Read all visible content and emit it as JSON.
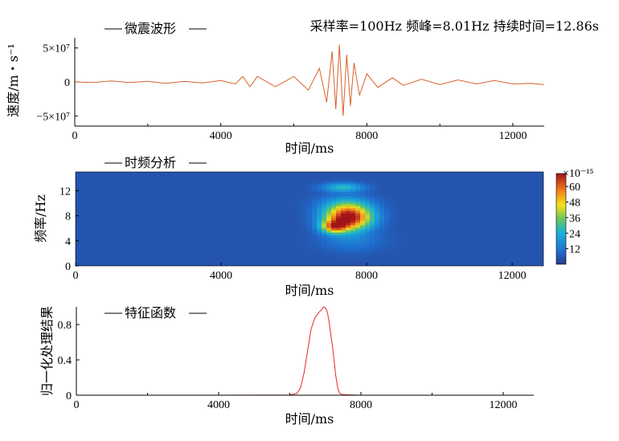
{
  "chart_data": [
    {
      "type": "line",
      "title": "微震波形",
      "annotation": "采样率=100Hz 频峰=8.01Hz 持续时间=12.86s",
      "xlabel": "时间/ms",
      "ylabel": "速度/m・s⁻¹",
      "xlim": [
        0,
        12860
      ],
      "ylim": [
        -65000000,
        65000000
      ],
      "x_ticks": [
        0,
        4000,
        8000,
        12000
      ],
      "x_tick_labels": [
        "0",
        "4000",
        "8000",
        "12000"
      ],
      "y_ticks": [
        50000000,
        0,
        -50000000
      ],
      "y_tick_labels": [
        "5×10⁷",
        "0",
        "−5×10⁷"
      ],
      "color": "#d9612b",
      "series": [
        {
          "x": [
            0,
            500,
            1000,
            1500,
            2000,
            2500,
            3000,
            3500,
            4000,
            4400,
            4600,
            4800,
            5000,
            5500,
            6000,
            6400,
            6700,
            6900,
            7050,
            7150,
            7250,
            7350,
            7450,
            7550,
            7650,
            7800,
            8000,
            8300,
            8700,
            9000,
            9500,
            10000,
            10500,
            11000,
            11500,
            12000,
            12500,
            12860
          ],
          "y": [
            0,
            -1000000,
            1500000,
            -1000000,
            1000000,
            -2000000,
            1000000,
            -1500000,
            2000000,
            -3000000,
            8000000,
            -7000000,
            8000000,
            -7000000,
            8000000,
            -12000000,
            20000000,
            -30000000,
            45000000,
            -40000000,
            55000000,
            -50000000,
            40000000,
            -35000000,
            28000000,
            -20000000,
            12000000,
            -8000000,
            6000000,
            -5000000,
            4000000,
            -4000000,
            3000000,
            -3000000,
            2000000,
            -3000000,
            -2000000,
            -4000000
          ]
        }
      ]
    },
    {
      "type": "heatmap",
      "title": "时频分析",
      "xlabel": "时间/ms",
      "ylabel": "频率/Hz",
      "xlim": [
        0,
        12860
      ],
      "ylim": [
        0,
        15
      ],
      "x_ticks": [
        0,
        4000,
        8000,
        12000
      ],
      "x_tick_labels": [
        "0",
        "4000",
        "8000",
        "12000"
      ],
      "y_ticks": [
        0,
        4,
        8,
        12
      ],
      "y_tick_labels": [
        "0",
        "4",
        "8",
        "12"
      ],
      "colorbar_exponent": "×10⁻¹⁵",
      "colorbar_range": [
        0,
        70
      ],
      "colorbar_ticks": [
        12,
        24,
        36,
        48,
        60
      ],
      "colorbar_tick_labels": [
        "12",
        "24",
        "36",
        "48",
        "60"
      ],
      "blobs": [
        {
          "t": 7500,
          "f": 7.8,
          "sigma_t": 450,
          "sigma_f": 1.4,
          "peak": 70
        },
        {
          "t": 7100,
          "f": 6.3,
          "sigma_t": 250,
          "sigma_f": 0.7,
          "peak": 40
        },
        {
          "t": 7350,
          "f": 12.6,
          "sigma_t": 400,
          "sigma_f": 0.5,
          "peak": 22
        },
        {
          "t": 7400,
          "f": 10.0,
          "sigma_t": 550,
          "sigma_f": 1.0,
          "peak": 10
        },
        {
          "t": 7600,
          "f": 4.0,
          "sigma_t": 600,
          "sigma_f": 1.2,
          "peak": 8
        }
      ]
    },
    {
      "type": "line",
      "title": "特征函数",
      "xlabel": "时间/ms",
      "ylabel": "归一化处理结果",
      "xlim": [
        0,
        12860
      ],
      "ylim": [
        0,
        1.0
      ],
      "x_ticks": [
        0,
        4000,
        8000,
        12000
      ],
      "x_tick_labels": [
        "0",
        "4000",
        "8000",
        "12000"
      ],
      "y_ticks": [
        0,
        0.4,
        0.8
      ],
      "y_tick_labels": [
        "0",
        "0.4",
        "0.8"
      ],
      "color": "#e8262a",
      "series": [
        {
          "x": [
            0,
            4000,
            6000,
            6200,
            6300,
            6400,
            6500,
            6600,
            6700,
            6800,
            6900,
            6950,
            7000,
            7050,
            7100,
            7200,
            7300,
            7350,
            7400,
            7500,
            8000,
            12860
          ],
          "y": [
            0,
            0,
            0.003,
            0.02,
            0.08,
            0.25,
            0.5,
            0.75,
            0.87,
            0.93,
            0.97,
            1.0,
            0.99,
            0.95,
            0.85,
            0.55,
            0.2,
            0.08,
            0.02,
            0.005,
            0,
            0
          ]
        }
      ]
    }
  ]
}
